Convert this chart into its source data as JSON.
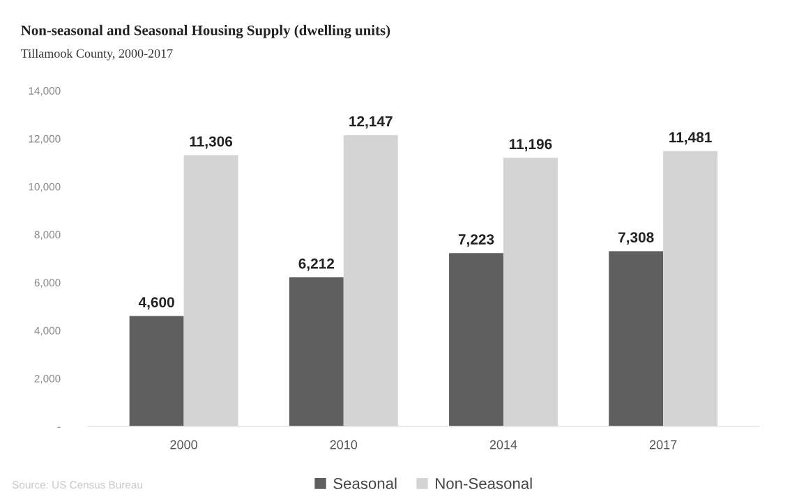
{
  "chart_data": {
    "type": "bar",
    "title": "Non-seasonal and Seasonal Housing Supply (dwelling units)",
    "subtitle": "Tillamook County, 2000-2017",
    "categories": [
      "2000",
      "2010",
      "2014",
      "2017"
    ],
    "series": [
      {
        "name": "Seasonal",
        "color": "#5f5f5f",
        "values": [
          4600,
          6212,
          7223,
          7308
        ],
        "value_labels": [
          "4,600",
          "6,212",
          "7,223",
          "7,308"
        ]
      },
      {
        "name": "Non-Seasonal",
        "color": "#d4d4d4",
        "values": [
          11306,
          12147,
          11196,
          11481
        ],
        "value_labels": [
          "11,306",
          "12,147",
          "11,196",
          "11,481"
        ]
      }
    ],
    "ylim": [
      0,
      14000
    ],
    "yticks": [
      {
        "value": 0,
        "label": "-"
      },
      {
        "value": 2000,
        "label": "2,000"
      },
      {
        "value": 4000,
        "label": "4,000"
      },
      {
        "value": 6000,
        "label": "6,000"
      },
      {
        "value": 8000,
        "label": "8,000"
      },
      {
        "value": 10000,
        "label": "10,000"
      },
      {
        "value": 12000,
        "label": "12,000"
      },
      {
        "value": 14000,
        "label": "14,000"
      }
    ],
    "grid": false,
    "legend": "bottom",
    "annotations": [
      "Source: US Census Bureau"
    ]
  }
}
